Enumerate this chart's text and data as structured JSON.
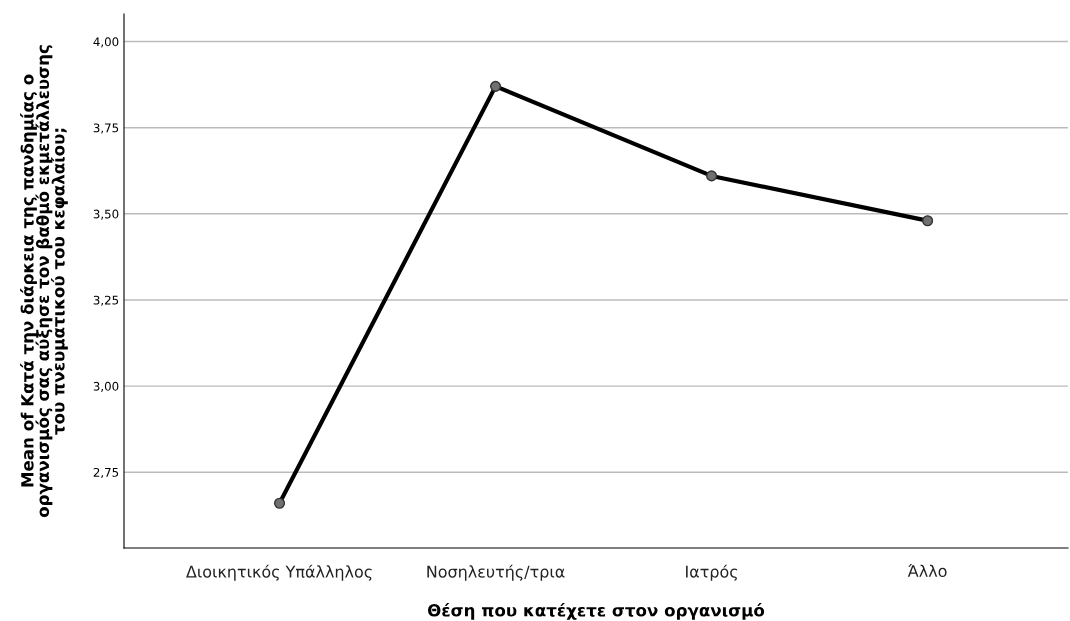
{
  "chart_data": {
    "type": "line",
    "xlabel": "Θέση που κατέχετε στον οργανισμό",
    "ylabel": "Mean of Κατά την διάρκεια της πανδημίας ο\nοργανισμός σας αύξησε τον βαθμό εκμετάλλευσης\nτου πνευματικού του κεφαλαίου;",
    "categories": [
      "Διοικητικός Υπάλληλος",
      "Νοσηλευτής/τρια",
      "Ιατρός",
      "Άλλο"
    ],
    "series": [
      {
        "color": "#000000",
        "values": [
          2.66,
          3.87,
          3.61,
          3.48
        ]
      }
    ],
    "ylim": [
      2.53,
      4.08
    ],
    "yticks": [
      {
        "value": 2.75,
        "label": "2,75"
      },
      {
        "value": 3.0,
        "label": "3,00"
      },
      {
        "value": 3.25,
        "label": "3,25"
      },
      {
        "value": 3.5,
        "label": "3,50"
      },
      {
        "value": 3.75,
        "label": "3,75"
      },
      {
        "value": 4.0,
        "label": "4,00"
      }
    ],
    "grid": "y",
    "marker": "circle",
    "legend": false
  }
}
